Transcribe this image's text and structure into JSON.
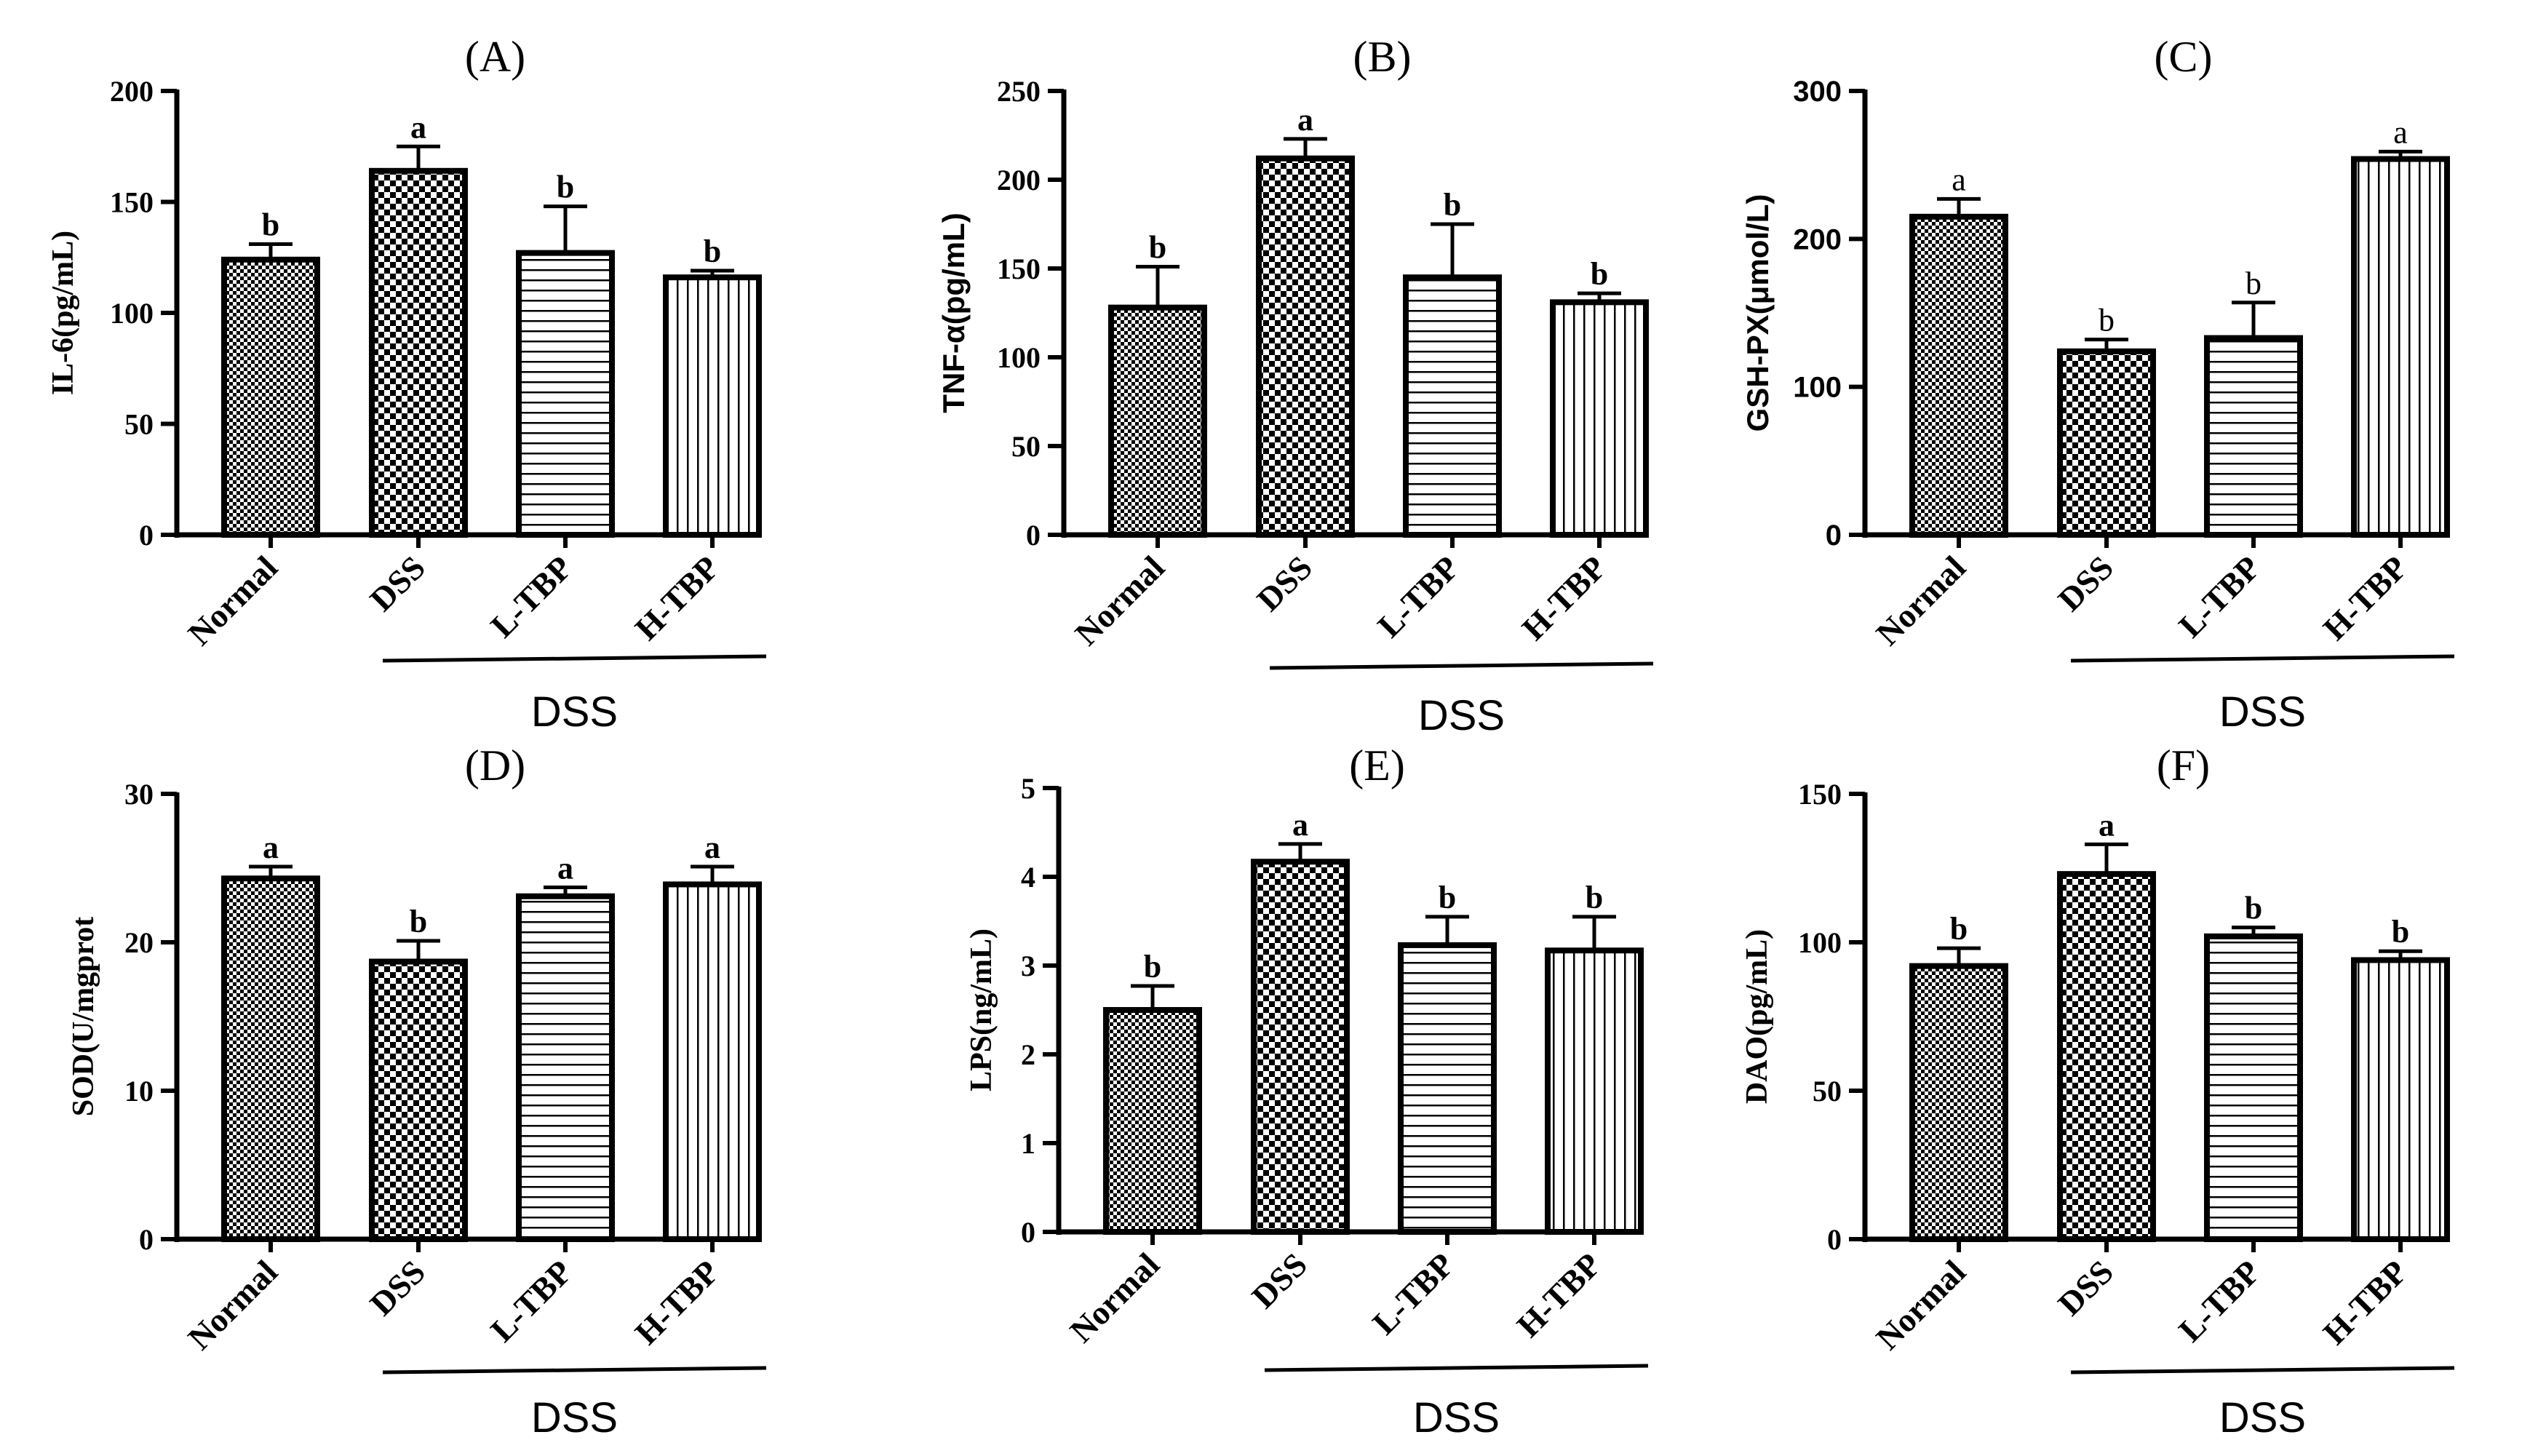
{
  "chart_data": [
    {
      "type": "bar",
      "panel": "(A)",
      "ylabel": "IL-6(pg/mL)",
      "ylim": [
        0,
        200
      ],
      "yticks": [
        0,
        50,
        100,
        150,
        200
      ],
      "categories": [
        "Normal",
        "DSS",
        "L-TBP",
        "H-TBP"
      ],
      "values": [
        124,
        164,
        127,
        116
      ],
      "errors": [
        7,
        11,
        21,
        3
      ],
      "significance": [
        "b",
        "a",
        "b",
        "b"
      ],
      "group_label": "DSS",
      "grid": false
    },
    {
      "type": "bar",
      "panel": "(B)",
      "ylabel": "TNF-α(pg/mL)",
      "ylim": [
        0,
        250
      ],
      "yticks": [
        0,
        50,
        100,
        150,
        200,
        250
      ],
      "categories": [
        "Normal",
        "DSS",
        "L-TBP",
        "H-TBP"
      ],
      "values": [
        128,
        212,
        145,
        131
      ],
      "errors": [
        23,
        11,
        30,
        5
      ],
      "significance": [
        "b",
        "a",
        "b",
        "b"
      ],
      "group_label": "DSS",
      "grid": false
    },
    {
      "type": "bar",
      "panel": "(C)",
      "ylabel": "GSH-PX(μmol/L)",
      "ylim": [
        0,
        300
      ],
      "yticks": [
        0,
        100,
        200,
        300
      ],
      "categories": [
        "Normal",
        "DSS",
        "L-TBP",
        "H-TBP"
      ],
      "values": [
        215,
        124,
        133,
        254
      ],
      "errors": [
        12,
        8,
        24,
        5
      ],
      "significance": [
        "a",
        "b",
        "b",
        "a"
      ],
      "group_label": "DSS",
      "grid": false
    },
    {
      "type": "bar",
      "panel": "(D)",
      "ylabel": "SOD(U/mgprot",
      "ylim": [
        0,
        30
      ],
      "yticks": [
        0,
        10,
        20,
        30
      ],
      "categories": [
        "Normal",
        "DSS",
        "L-TBP",
        "H-TBP"
      ],
      "values": [
        24.3,
        18.7,
        23.1,
        23.9
      ],
      "errors": [
        0.8,
        1.4,
        0.6,
        1.2
      ],
      "significance": [
        "a",
        "b",
        "a",
        "a"
      ],
      "group_label": "DSS",
      "grid": false
    },
    {
      "type": "bar",
      "panel": "(E)",
      "ylabel": "LPS(ng/mL)",
      "ylim": [
        0,
        5
      ],
      "yticks": [
        0,
        1,
        2,
        3,
        4,
        5
      ],
      "categories": [
        "Normal",
        "DSS",
        "L-TBP",
        "H-TBP"
      ],
      "values": [
        2.5,
        4.17,
        3.23,
        3.17
      ],
      "errors": [
        0.27,
        0.2,
        0.32,
        0.38
      ],
      "significance": [
        "b",
        "a",
        "b",
        "b"
      ],
      "group_label": "DSS",
      "grid": false
    },
    {
      "type": "bar",
      "panel": "(F)",
      "ylabel": "DAO(pg/mL)",
      "ylim": [
        0,
        150
      ],
      "yticks": [
        0,
        50,
        100,
        150
      ],
      "categories": [
        "Normal",
        "DSS",
        "L-TBP",
        "H-TBP"
      ],
      "values": [
        92,
        123,
        102,
        94
      ],
      "errors": [
        6,
        10,
        3,
        3
      ],
      "significance": [
        "b",
        "a",
        "b",
        "b"
      ],
      "group_label": "DSS",
      "grid": false
    }
  ],
  "bar_patterns": [
    "checker-small",
    "checker-large",
    "horizontal-lines",
    "vertical-lines"
  ],
  "colors": {
    "ink": "#000000",
    "background": "#ffffff"
  }
}
